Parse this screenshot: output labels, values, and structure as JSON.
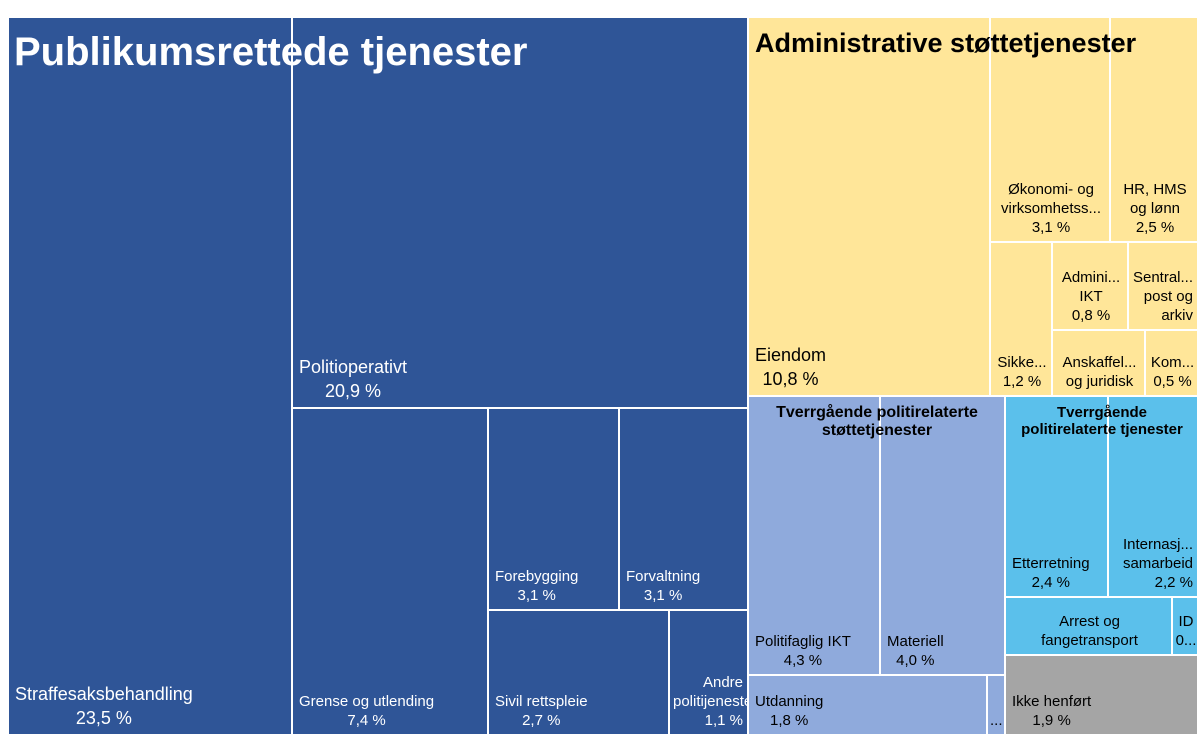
{
  "chart_data": {
    "type": "treemap",
    "groups": [
      {
        "name": "Publikumsrettede tjenester",
        "color": "#2f5597",
        "text_color": "#ffffff",
        "labels": [
          "Straffesaksbehandling",
          "Politioperativt",
          "Grense og utlending",
          "Forebygging",
          "Forvaltning",
          "Sivil rettspleie",
          "Andre politijenester"
        ],
        "values": [
          23.5,
          20.9,
          7.4,
          3.1,
          3.1,
          2.7,
          1.1
        ],
        "value_labels": [
          "23,5 %",
          "20,9 %",
          "7,4 %",
          "3,1 %",
          "3,1 %",
          "2,7 %",
          "1,1 %"
        ]
      },
      {
        "name": "Administrative støttetjenester",
        "color": "#ffe699",
        "text_color": "#000000",
        "labels": [
          "Eiendom",
          "Økonomi- og virksomhetss...",
          "HR, HMS og lønn",
          "Sikke...",
          "Admini... IKT",
          "Sentral... post og arkiv",
          "Anskaffel... og juridisk",
          "Kom..."
        ],
        "values": [
          10.8,
          3.1,
          2.5,
          1.2,
          0.8,
          0.7,
          0.7,
          0.5
        ],
        "value_labels": [
          "10,8 %",
          "3,1 %",
          "2,5 %",
          "1,2 %",
          "0,8 %",
          null,
          null,
          "0,5 %"
        ]
      },
      {
        "name": "Tverrgående politirelaterte støttetjenester",
        "color": "#8faadc",
        "text_color": "#000000",
        "labels": [
          "Politifaglig IKT",
          "Materiell",
          "Utdanning",
          "..."
        ],
        "values": [
          4.3,
          4.0,
          1.8,
          0.1
        ],
        "value_labels": [
          "4,3 %",
          "4,0 %",
          "1,8 %",
          null
        ]
      },
      {
        "name": "Tverrgående politirelaterte tjenester",
        "color": "#5bc0eb",
        "text_color": "#000000",
        "labels": [
          "Etterretning",
          "Internasj... samarbeid",
          "Arrest og fangetransport",
          "ID"
        ],
        "values": [
          2.4,
          2.2,
          1.2,
          0.2
        ],
        "value_labels": [
          "2,4 %",
          "2,2 %",
          null,
          "0..."
        ]
      },
      {
        "color": "#a5a5a5",
        "text_color": "#000000",
        "labels": [
          "Ikke henført"
        ],
        "values": [
          1.9
        ],
        "value_labels": [
          "1,9 %"
        ]
      }
    ]
  }
}
